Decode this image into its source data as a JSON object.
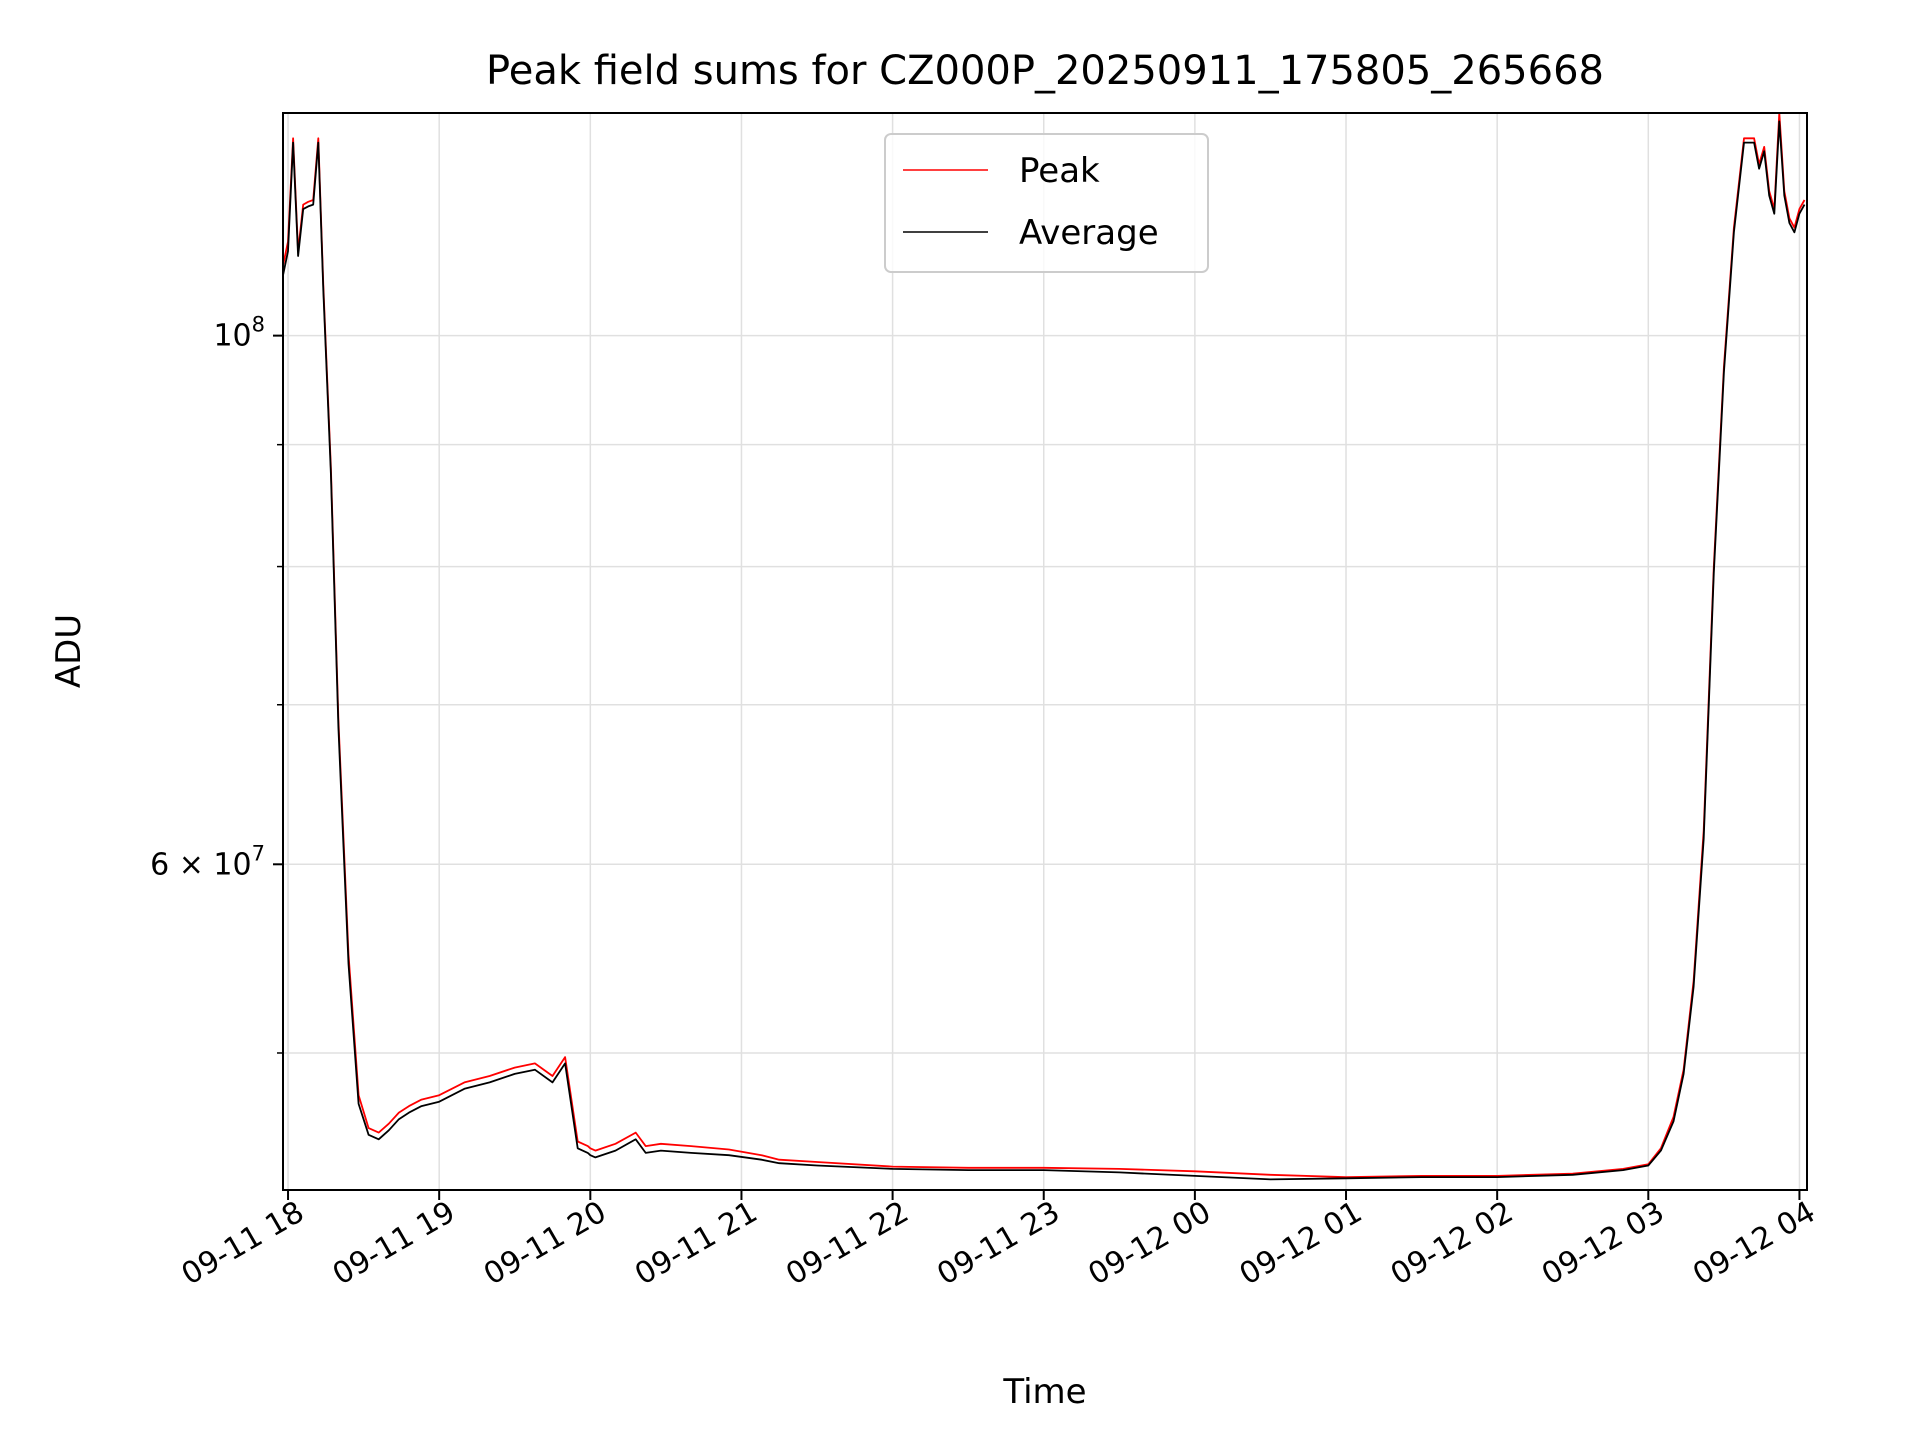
{
  "chart_data": {
    "type": "line",
    "title": "Peak field sums for CZ000P_20250911_175805_265668",
    "xlabel": "Time",
    "ylabel": "ADU",
    "y_scale": "log",
    "ylim": [
      43800000,
      124000000
    ],
    "xlim": [
      "2025-09-11 17:58",
      "2025-09-12 04:03"
    ],
    "grid": true,
    "legend_position": "top-center",
    "x_ticks": [
      {
        "value": "2025-09-11 18:00",
        "label": "09-11 18"
      },
      {
        "value": "2025-09-11 19:00",
        "label": "09-11 19"
      },
      {
        "value": "2025-09-11 20:00",
        "label": "09-11 20"
      },
      {
        "value": "2025-09-11 21:00",
        "label": "09-11 21"
      },
      {
        "value": "2025-09-11 22:00",
        "label": "09-11 22"
      },
      {
        "value": "2025-09-11 23:00",
        "label": "09-11 23"
      },
      {
        "value": "2025-09-12 00:00",
        "label": "09-12 00"
      },
      {
        "value": "2025-09-12 01:00",
        "label": "09-12 01"
      },
      {
        "value": "2025-09-12 02:00",
        "label": "09-12 02"
      },
      {
        "value": "2025-09-12 03:00",
        "label": "09-12 03"
      },
      {
        "value": "2025-09-12 04:00",
        "label": "09-12 04"
      }
    ],
    "y_major_ticks": [
      {
        "value": 100000000,
        "mantissa": "",
        "exponent": "8"
      },
      {
        "value": 60000000,
        "mantissa": "6 × ",
        "exponent": "7"
      }
    ],
    "y_minor_ticks": [
      50000000,
      70000000,
      80000000,
      90000000
    ],
    "series": [
      {
        "name": "Peak",
        "color": "#ff0000",
        "x": [
          "2025-09-11 17:58",
          "2025-09-11 18:00",
          "2025-09-11 18:02",
          "2025-09-11 18:04",
          "2025-09-11 18:06",
          "2025-09-11 18:08",
          "2025-09-11 18:10",
          "2025-09-11 18:12",
          "2025-09-11 18:14",
          "2025-09-11 18:17",
          "2025-09-11 18:20",
          "2025-09-11 18:24",
          "2025-09-11 18:28",
          "2025-09-11 18:32",
          "2025-09-11 18:36",
          "2025-09-11 18:40",
          "2025-09-11 18:44",
          "2025-09-11 18:48",
          "2025-09-11 18:53",
          "2025-09-11 19:00",
          "2025-09-11 19:10",
          "2025-09-11 19:20",
          "2025-09-11 19:30",
          "2025-09-11 19:38",
          "2025-09-11 19:45",
          "2025-09-11 19:50",
          "2025-09-11 19:55",
          "2025-09-11 19:59",
          "2025-09-11 20:00",
          "2025-09-11 20:02",
          "2025-09-11 20:10",
          "2025-09-11 20:18",
          "2025-09-11 20:22",
          "2025-09-11 20:28",
          "2025-09-11 20:40",
          "2025-09-11 20:55",
          "2025-09-11 21:08",
          "2025-09-11 21:15",
          "2025-09-11 21:30",
          "2025-09-11 22:00",
          "2025-09-11 22:30",
          "2025-09-11 23:00",
          "2025-09-11 23:30",
          "2025-09-12 00:00",
          "2025-09-12 00:30",
          "2025-09-12 01:00",
          "2025-09-12 01:30",
          "2025-09-12 02:00",
          "2025-09-12 02:30",
          "2025-09-12 02:50",
          "2025-09-12 03:00",
          "2025-09-12 03:05",
          "2025-09-12 03:10",
          "2025-09-12 03:14",
          "2025-09-12 03:18",
          "2025-09-12 03:22",
          "2025-09-12 03:26",
          "2025-09-12 03:30",
          "2025-09-12 03:34",
          "2025-09-12 03:38",
          "2025-09-12 03:42",
          "2025-09-12 03:44",
          "2025-09-12 03:46",
          "2025-09-12 03:48",
          "2025-09-12 03:50",
          "2025-09-12 03:52",
          "2025-09-12 03:54",
          "2025-09-12 03:56",
          "2025-09-12 03:58",
          "2025-09-12 04:00",
          "2025-09-12 04:02"
        ],
        "y": [
          107000000,
          109500000,
          121000000,
          108500000,
          113500000,
          113800000,
          114000000,
          121000000,
          105000000,
          88000000,
          69000000,
          55000000,
          48000000,
          46500000,
          46300000,
          46700000,
          47200000,
          47500000,
          47800000,
          48000000,
          48600000,
          48900000,
          49300000,
          49500000,
          48900000,
          49800000,
          45900000,
          45700000,
          45600000,
          45500000,
          45800000,
          46300000,
          45700000,
          45800000,
          45700000,
          45550000,
          45300000,
          45100000,
          45000000,
          44800000,
          44750000,
          44750000,
          44700000,
          44600000,
          44450000,
          44350000,
          44400000,
          44400000,
          44500000,
          44700000,
          44900000,
          45600000,
          47000000,
          49200000,
          53600000,
          62000000,
          80000000,
          97000000,
          111000000,
          121000000,
          121000000,
          118000000,
          120000000,
          115000000,
          113000000,
          124000000,
          115000000,
          112000000,
          111000000,
          113000000,
          114000000
        ]
      },
      {
        "name": "Average",
        "color": "#000000",
        "x": [
          "2025-09-11 17:58",
          "2025-09-11 18:00",
          "2025-09-11 18:02",
          "2025-09-11 18:04",
          "2025-09-11 18:06",
          "2025-09-11 18:08",
          "2025-09-11 18:10",
          "2025-09-11 18:12",
          "2025-09-11 18:14",
          "2025-09-11 18:17",
          "2025-09-11 18:20",
          "2025-09-11 18:24",
          "2025-09-11 18:28",
          "2025-09-11 18:32",
          "2025-09-11 18:36",
          "2025-09-11 18:40",
          "2025-09-11 18:44",
          "2025-09-11 18:48",
          "2025-09-11 18:53",
          "2025-09-11 19:00",
          "2025-09-11 19:10",
          "2025-09-11 19:20",
          "2025-09-11 19:30",
          "2025-09-11 19:38",
          "2025-09-11 19:45",
          "2025-09-11 19:50",
          "2025-09-11 19:55",
          "2025-09-11 19:59",
          "2025-09-11 20:00",
          "2025-09-11 20:02",
          "2025-09-11 20:10",
          "2025-09-11 20:18",
          "2025-09-11 20:22",
          "2025-09-11 20:28",
          "2025-09-11 20:40",
          "2025-09-11 20:55",
          "2025-09-11 21:08",
          "2025-09-11 21:15",
          "2025-09-11 21:30",
          "2025-09-11 22:00",
          "2025-09-11 22:30",
          "2025-09-11 23:00",
          "2025-09-11 23:30",
          "2025-09-12 00:00",
          "2025-09-12 00:30",
          "2025-09-12 01:00",
          "2025-09-12 01:30",
          "2025-09-12 02:00",
          "2025-09-12 02:30",
          "2025-09-12 02:50",
          "2025-09-12 03:00",
          "2025-09-12 03:05",
          "2025-09-12 03:10",
          "2025-09-12 03:14",
          "2025-09-12 03:18",
          "2025-09-12 03:22",
          "2025-09-12 03:26",
          "2025-09-12 03:30",
          "2025-09-12 03:34",
          "2025-09-12 03:38",
          "2025-09-12 03:42",
          "2025-09-12 03:44",
          "2025-09-12 03:46",
          "2025-09-12 03:48",
          "2025-09-12 03:50",
          "2025-09-12 03:52",
          "2025-09-12 03:54",
          "2025-09-12 03:56",
          "2025-09-12 03:58",
          "2025-09-12 04:00",
          "2025-09-12 04:02"
        ],
        "y": [
          106000000,
          108500000,
          120500000,
          108000000,
          113000000,
          113300000,
          113500000,
          120500000,
          104500000,
          87500000,
          68500000,
          54500000,
          47600000,
          46200000,
          46000000,
          46400000,
          46900000,
          47200000,
          47500000,
          47700000,
          48300000,
          48600000,
          49000000,
          49200000,
          48600000,
          49500000,
          45600000,
          45400000,
          45300000,
          45200000,
          45500000,
          46000000,
          45400000,
          45500000,
          45400000,
          45300000,
          45100000,
          44950000,
          44850000,
          44700000,
          44650000,
          44650000,
          44550000,
          44400000,
          44250000,
          44300000,
          44350000,
          44350000,
          44450000,
          44650000,
          44850000,
          45500000,
          46800000,
          49000000,
          53300000,
          61500000,
          79500000,
          96500000,
          110500000,
          120500000,
          120500000,
          117500000,
          119500000,
          114500000,
          112500000,
          123000000,
          114500000,
          111500000,
          110500000,
          112500000,
          113500000
        ]
      }
    ]
  }
}
